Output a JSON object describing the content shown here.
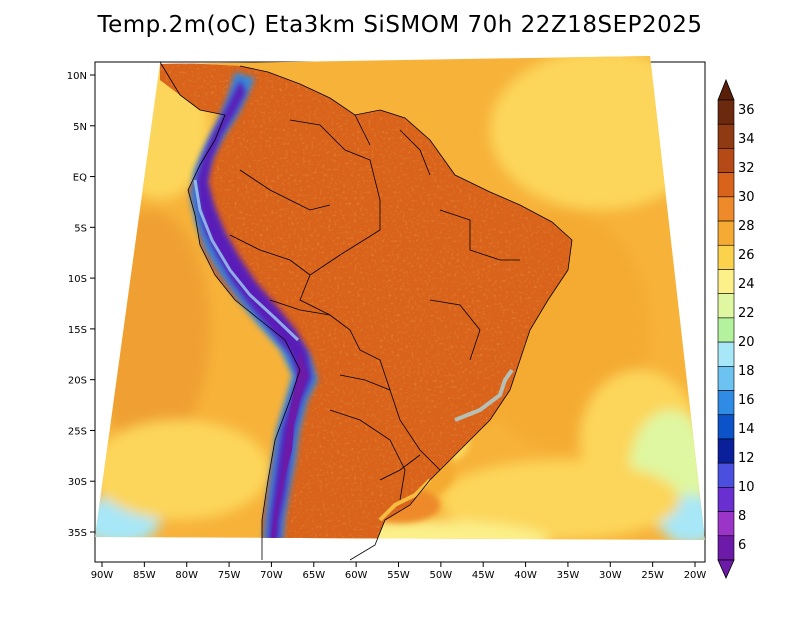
{
  "title": "Temp.2m(oC) Eta3km SiSMOM 70h 22Z18SEP2025",
  "lat_ticks": [
    "10N",
    "5N",
    "EQ",
    "5S",
    "10S",
    "15S",
    "20S",
    "25S",
    "30S",
    "35S"
  ],
  "lon_ticks": [
    "90W",
    "85W",
    "80W",
    "75W",
    "70W",
    "65W",
    "60W",
    "55W",
    "50W",
    "45W",
    "40W",
    "35W",
    "30W",
    "25W",
    "20W"
  ],
  "colorbar": {
    "labels": [
      "36",
      "34",
      "32",
      "30",
      "28",
      "26",
      "24",
      "22",
      "20",
      "18",
      "16",
      "14",
      "12",
      "10",
      "8",
      "6"
    ],
    "colors_top_to_bottom": [
      "#6b2a0e",
      "#8f3a12",
      "#b54a16",
      "#d9631b",
      "#ee8a2a",
      "#f5ab33",
      "#fbd24c",
      "#fbf08a",
      "#dff7a0",
      "#b5f29d",
      "#a7e7f7",
      "#6cc3f2",
      "#2f8be3",
      "#0c52c8",
      "#0a1f9a",
      "#4a4fe0",
      "#6a2fd0",
      "#9a35c8",
      "#6c1aa8"
    ]
  },
  "colors": {
    "ocean_warm": "#f5b33a",
    "ocean_mid": "#fcd65a",
    "land_hot": "#d9631b",
    "land_very_hot": "#b54a16",
    "andes_cold": "#5a1fb8",
    "andes_cool": "#2f8be3",
    "south_cool": "#b5f29d"
  }
}
